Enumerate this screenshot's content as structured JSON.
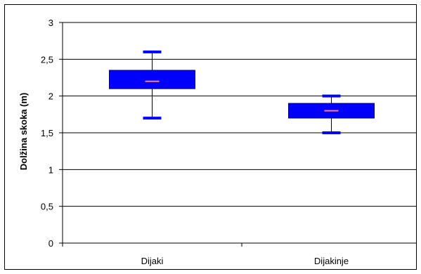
{
  "chart_data": {
    "type": "boxplot",
    "title": "",
    "xlabel": "",
    "ylabel": "Dolžina skoka (m)",
    "ylim": [
      0,
      3
    ],
    "yticks": [
      0,
      0.5,
      1,
      1.5,
      2,
      2.5,
      3
    ],
    "ytick_labels": [
      "0",
      "0,5",
      "1",
      "1,5",
      "2",
      "2,5",
      "3"
    ],
    "grid": true,
    "legend": "none",
    "categories": [
      "Dijaki",
      "Dijakinje"
    ],
    "series": [
      {
        "category": "Dijaki",
        "min": 1.7,
        "q1": 2.1,
        "median": 2.2,
        "q3": 2.35,
        "max": 2.6
      },
      {
        "category": "Dijakinje",
        "min": 1.5,
        "q1": 1.7,
        "median": 1.8,
        "q3": 1.9,
        "max": 2.0
      }
    ],
    "colors": {
      "box_fill": "#0000FF",
      "box_stroke": "#000080",
      "whisker_cap": "#0000FF",
      "median": "#FF8080",
      "whisker": "#000000",
      "grid": "#000000"
    }
  }
}
